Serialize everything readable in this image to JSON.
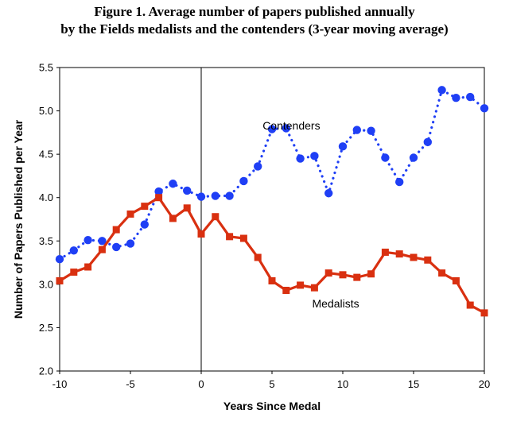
{
  "chart_data": {
    "type": "line",
    "title": "Figure 1. Average number of papers published annually",
    "subtitle": "by the Fields medalists and the contenders (3-year moving average)",
    "xlabel": "Years Since Medal",
    "ylabel": "Number of Papers Published per Year",
    "xlim": [
      -10,
      20
    ],
    "ylim": [
      2.0,
      5.5
    ],
    "xticks": [
      "-10",
      "-5",
      "0",
      "5",
      "10",
      "15",
      "20"
    ],
    "yticks": [
      "2.0",
      "2.5",
      "3.0",
      "3.5",
      "4.0",
      "4.5",
      "5.0",
      "5.5"
    ],
    "grid": false,
    "legend": "none",
    "x": [
      -10,
      -9,
      -8,
      -7,
      -6,
      -5,
      -4,
      -3,
      -2,
      -1,
      0,
      1,
      2,
      3,
      4,
      5,
      6,
      7,
      8,
      9,
      10,
      11,
      12,
      13,
      14,
      15,
      16,
      17,
      18,
      19,
      20
    ],
    "series": [
      {
        "name": "Contenders",
        "color": "#1f3ff5",
        "style": "dotted",
        "marker": "circle",
        "values": [
          3.29,
          3.39,
          3.51,
          3.5,
          3.43,
          3.47,
          3.69,
          4.07,
          4.16,
          4.08,
          4.01,
          4.02,
          4.02,
          4.19,
          4.36,
          4.79,
          4.8,
          4.45,
          4.48,
          4.05,
          4.59,
          4.78,
          4.77,
          4.46,
          4.18,
          4.46,
          4.64,
          5.24,
          5.15,
          5.16,
          5.03
        ]
      },
      {
        "name": "Medalists",
        "color": "#d93010",
        "style": "solid",
        "marker": "square",
        "values": [
          3.04,
          3.14,
          3.2,
          3.4,
          3.63,
          3.81,
          3.9,
          4.0,
          3.76,
          3.88,
          3.58,
          3.78,
          3.55,
          3.53,
          3.31,
          3.04,
          2.93,
          2.99,
          2.96,
          3.13,
          3.11,
          3.08,
          3.12,
          3.37,
          3.35,
          3.31,
          3.28,
          3.13,
          3.04,
          2.76,
          2.67
        ]
      }
    ],
    "annotations": [
      {
        "text": "Contenders",
        "x": 4,
        "y": 4.83
      },
      {
        "text": "Medalists",
        "x": 7.5,
        "y": 2.78
      }
    ],
    "reference_line_x": 0
  }
}
